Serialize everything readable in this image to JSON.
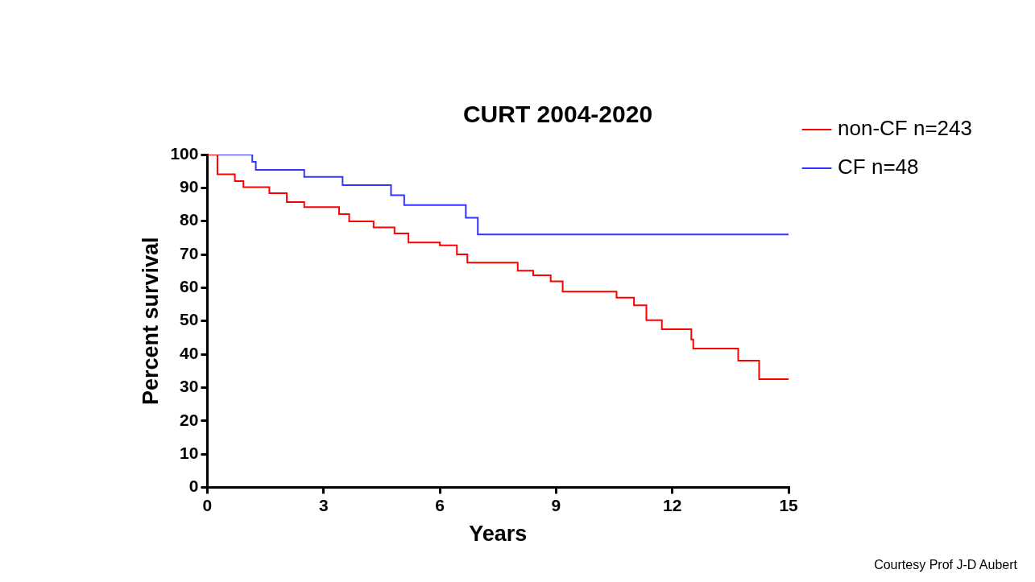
{
  "chart_data": {
    "type": "step",
    "title": "CURT 2004-2020",
    "xlabel": "Years",
    "ylabel": "Percent survival",
    "xlim": [
      0,
      15
    ],
    "xticks": [
      0,
      3,
      6,
      9,
      12,
      15
    ],
    "ylim": [
      0,
      100
    ],
    "yticks": [
      0,
      10,
      20,
      30,
      40,
      50,
      60,
      70,
      80,
      90,
      100
    ],
    "grid": false,
    "legend": "right",
    "annotations": [
      "Courtesy Prof J-D Aubert"
    ],
    "series": [
      {
        "name": "non-CF n=243",
        "color": "#ff0000",
        "x": [
          0,
          0.26,
          0.71,
          0.93,
          1.6,
          2.05,
          2.5,
          3.4,
          3.66,
          4.29,
          4.83,
          5.19,
          6.0,
          6.44,
          6.71,
          8.01,
          8.41,
          8.86,
          9.17,
          10.56,
          11.01,
          11.33,
          11.73,
          12.49,
          12.54,
          13.7,
          14.24,
          15
        ],
        "values": [
          100,
          94.1,
          92,
          90.2,
          88.4,
          85.7,
          84.2,
          82.1,
          79.9,
          78.1,
          76.3,
          73.6,
          72.7,
          70,
          67.5,
          65.1,
          63.7,
          61.9,
          58.8,
          57,
          54.7,
          50.2,
          47.5,
          44.4,
          41.7,
          38.1,
          32.5,
          32.5
        ]
      },
      {
        "name": "CF n=48",
        "color": "#3333ff",
        "x": [
          0,
          1.16,
          1.25,
          2.5,
          3.49,
          4.74,
          5.08,
          6.67,
          6.98,
          15
        ],
        "values": [
          100,
          97.8,
          95.4,
          93.3,
          90.8,
          87.8,
          84.8,
          81,
          76,
          76
        ]
      }
    ]
  }
}
